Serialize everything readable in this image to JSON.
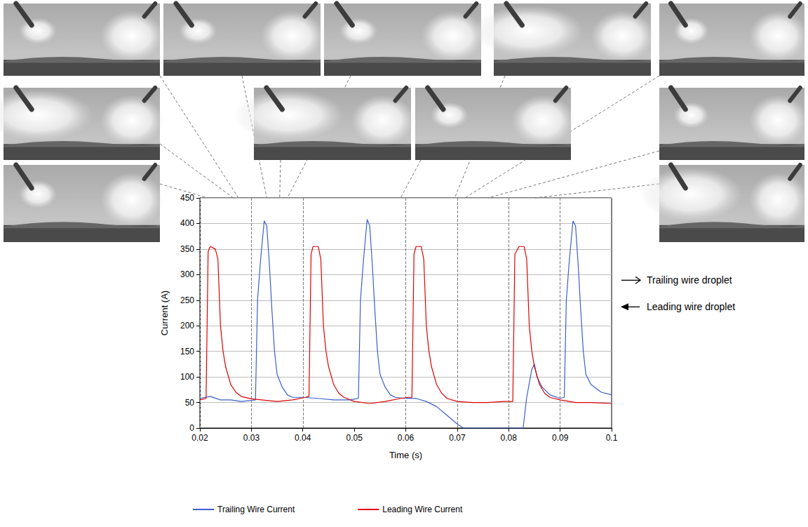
{
  "chart_data": {
    "type": "line",
    "x_label": "Time (s)",
    "y_label": "Current (A)",
    "xlim": [
      0.02,
      0.1
    ],
    "xticks": [
      0.02,
      0.03,
      0.04,
      0.05,
      0.06,
      0.07,
      0.08,
      0.09,
      0.1
    ],
    "ylim": [
      0,
      450
    ],
    "yticks": [
      0,
      50,
      100,
      150,
      200,
      250,
      300,
      350,
      400,
      450
    ],
    "grid": "y",
    "legend": "bottom",
    "series": [
      {
        "name": "Trailing Wire Current",
        "color": "#3a5fcd",
        "marker": "none",
        "line_style": "solid",
        "x": [
          0.02,
          0.022,
          0.024,
          0.026,
          0.028,
          0.0308,
          0.0312,
          0.0318,
          0.0325,
          0.033,
          0.0335,
          0.034,
          0.0345,
          0.035,
          0.036,
          0.037,
          0.038,
          0.04,
          0.043,
          0.046,
          0.049,
          0.0508,
          0.0512,
          0.0518,
          0.0525,
          0.053,
          0.0535,
          0.054,
          0.0545,
          0.055,
          0.056,
          0.057,
          0.058,
          0.06,
          0.062,
          0.064,
          0.066,
          0.068,
          0.07,
          0.0712,
          0.074,
          0.078,
          0.0828,
          0.0835,
          0.0845,
          0.085,
          0.0855,
          0.0865,
          0.088,
          0.09,
          0.0908,
          0.0912,
          0.0918,
          0.0925,
          0.093,
          0.0935,
          0.094,
          0.0945,
          0.095,
          0.096,
          0.098,
          0.1
        ],
        "values": [
          58,
          62,
          55,
          55,
          52,
          55,
          250,
          330,
          405,
          395,
          320,
          230,
          150,
          105,
          80,
          65,
          60,
          60,
          58,
          55,
          55,
          58,
          250,
          330,
          408,
          395,
          320,
          230,
          150,
          105,
          80,
          65,
          60,
          58,
          58,
          52,
          42,
          25,
          8,
          0,
          0,
          0,
          0,
          60,
          115,
          125,
          100,
          80,
          65,
          58,
          60,
          250,
          330,
          405,
          395,
          320,
          230,
          150,
          105,
          85,
          70,
          65
        ]
      },
      {
        "name": "Leading Wire Current",
        "color": "#e00000",
        "marker": "none",
        "line_style": "solid",
        "x": [
          0.02,
          0.0212,
          0.0216,
          0.022,
          0.023,
          0.0235,
          0.024,
          0.0245,
          0.025,
          0.026,
          0.027,
          0.028,
          0.03,
          0.032,
          0.035,
          0.038,
          0.0405,
          0.0412,
          0.0416,
          0.042,
          0.043,
          0.0435,
          0.044,
          0.0445,
          0.045,
          0.046,
          0.047,
          0.048,
          0.05,
          0.053,
          0.056,
          0.059,
          0.0605,
          0.0612,
          0.0616,
          0.062,
          0.063,
          0.0635,
          0.064,
          0.0645,
          0.065,
          0.066,
          0.067,
          0.068,
          0.07,
          0.073,
          0.076,
          0.079,
          0.0808,
          0.0812,
          0.082,
          0.083,
          0.0835,
          0.084,
          0.0845,
          0.085,
          0.086,
          0.087,
          0.088,
          0.09,
          0.093,
          0.096,
          0.1
        ],
        "values": [
          55,
          58,
          345,
          355,
          350,
          330,
          200,
          150,
          120,
          85,
          70,
          62,
          57,
          55,
          52,
          55,
          60,
          62,
          340,
          355,
          355,
          330,
          200,
          150,
          120,
          85,
          68,
          60,
          52,
          48,
          52,
          58,
          60,
          60,
          340,
          355,
          355,
          330,
          200,
          150,
          120,
          85,
          68,
          58,
          52,
          50,
          50,
          52,
          52,
          340,
          355,
          355,
          330,
          200,
          150,
          120,
          85,
          68,
          60,
          55,
          50,
          50,
          48
        ]
      }
    ],
    "frame_times": [
      0.0215,
      0.0265,
      0.0275,
      0.033,
      0.0355,
      0.037,
      0.059,
      0.0695,
      0.0715,
      0.076,
      0.085
    ],
    "annotations": [
      {
        "text": "Trailing wire droplet",
        "marker": "open_arrow_right"
      },
      {
        "text": "Leading wire droplet",
        "marker": "filled_arrow_left"
      }
    ]
  }
}
